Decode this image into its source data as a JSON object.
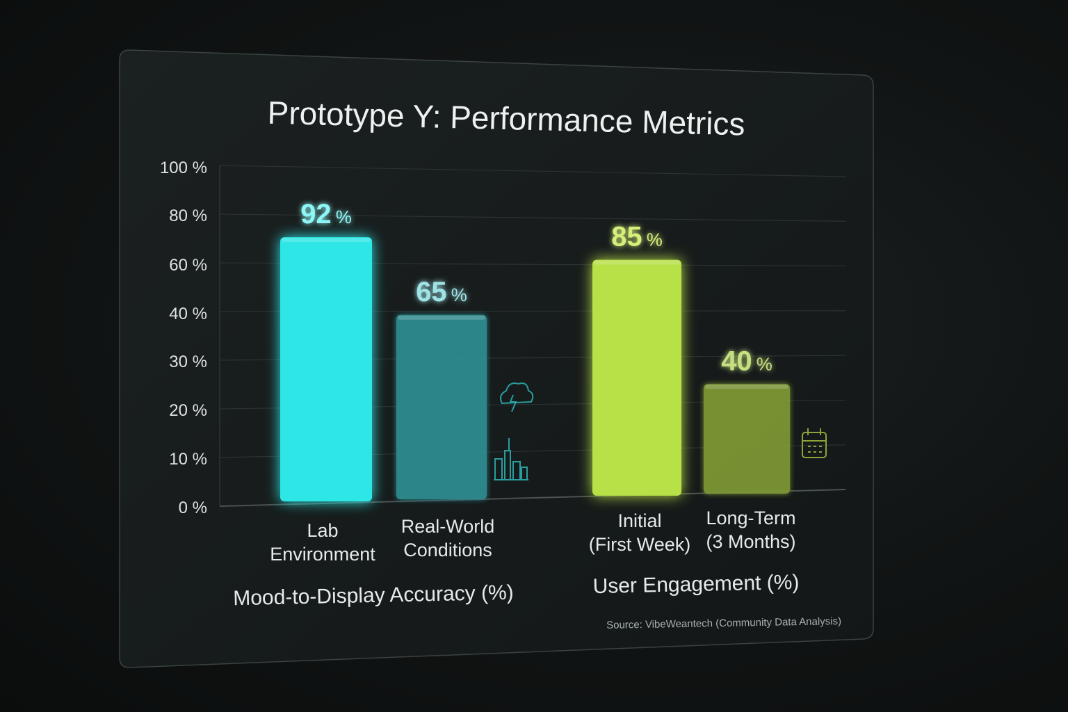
{
  "chart_data": {
    "type": "bar",
    "title": "Prototype Y: Performance Metrics",
    "y_axis": {
      "range": [
        0,
        100
      ],
      "tick_labels": [
        "0 %",
        "10 %",
        "20 %",
        "30 %",
        "40 %",
        "60 %",
        "80 %",
        "100 %"
      ]
    },
    "groups": [
      {
        "label": "Mood-to-Display Accuracy (%)",
        "color_primary": "#2ee6e6",
        "color_secondary": "#2f8f93",
        "label_color_primary": "#8ef6f6",
        "label_color_secondary": "#9fe3e6",
        "bars": [
          {
            "label": [
              "Lab",
              "Environment"
            ],
            "value": 92,
            "value_text": "92",
            "unit": "%"
          },
          {
            "label": [
              "Real-World",
              "Conditions"
            ],
            "value": 65,
            "value_text": "65",
            "unit": "%"
          }
        ],
        "icon": "weather-and-city-icon"
      },
      {
        "label": "User Engagement (%)",
        "color_primary": "#b8e046",
        "color_secondary": "#7f9a35",
        "label_color_primary": "#d4f07a",
        "label_color_secondary": "#c5e07f",
        "bars": [
          {
            "label": [
              "Initial",
              "(First Week)"
            ],
            "value": 85,
            "value_text": "85",
            "unit": "%"
          },
          {
            "label": [
              "Long-Term",
              "(3 Months)"
            ],
            "value": 40,
            "value_text": "40",
            "unit": "%"
          }
        ],
        "icon": "calendar-icon"
      }
    ],
    "source": "Source: VibeWeantech (Community Data Analysis)",
    "grid": true,
    "legend": "none"
  }
}
